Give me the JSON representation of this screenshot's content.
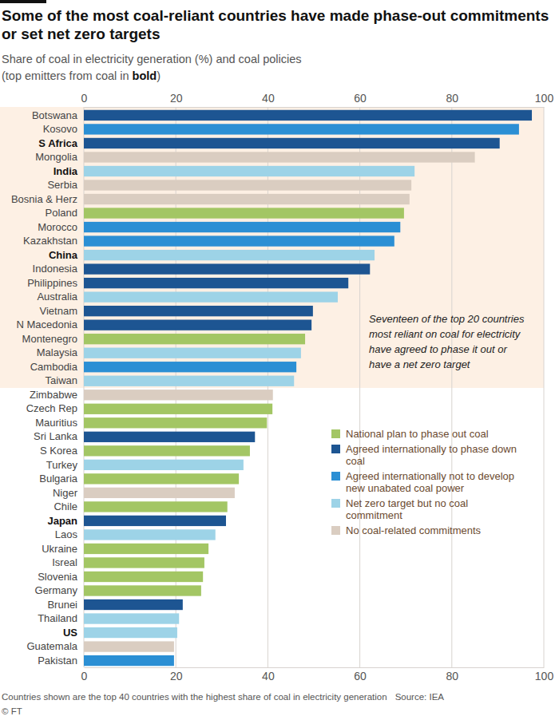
{
  "chart_data": {
    "type": "bar",
    "orientation": "horizontal",
    "title": [
      "Some of the most coal-reliant countries have made phase-out commitments",
      "or set net zero targets"
    ],
    "subtitle": [
      "Share of coal in electricity generation (%) and coal policies",
      "(top emitters from coal in bold)"
    ],
    "annotation": [
      "Seventeen of the top 20 countries",
      "most reliant on coal for electricity",
      "have agreed to phase it out or",
      "have a net zero target"
    ],
    "note": "Countries shown are the top 40 countries with the highest share of coal in electricity generation",
    "source": "Source: IEA",
    "credit": "© FT",
    "categories": [
      "Botswana",
      "Kosovo",
      "S Africa",
      "Mongolia",
      "India",
      "Serbia",
      "Bosnia & Herz",
      "Poland",
      "Morocco",
      "Kazakhstan",
      "China",
      "Indonesia",
      "Philippines",
      "Australia",
      "Vietnam",
      "N Macedonia",
      "Montenegro",
      "Malaysia",
      "Cambodia",
      "Taiwan",
      "Zimbabwe",
      "Czech Rep",
      "Mauritius",
      "Sri Lanka",
      "S Korea",
      "Turkey",
      "Bulgaria",
      "Niger",
      "Chile",
      "Japan",
      "Laos",
      "Ukraine",
      "Isreal",
      "Slovenia",
      "Germany",
      "Brunei",
      "Thailand",
      "US",
      "Guatemala",
      "Pakistan"
    ],
    "series": [
      {
        "name": "National plan to phase out coal",
        "color": "#a3c664",
        "values": [
          null,
          null,
          null,
          null,
          null,
          null,
          null,
          69.6,
          null,
          null,
          null,
          null,
          null,
          null,
          null,
          null,
          48.1,
          null,
          null,
          null,
          null,
          41.0,
          39.8,
          null,
          36.1,
          null,
          33.7,
          null,
          31.2,
          null,
          null,
          27.1,
          26.2,
          25.9,
          25.5,
          null,
          null,
          null,
          null,
          null
        ]
      },
      {
        "name": "Agreed internationally to phase down coal",
        "color": "#1d5592",
        "values": [
          97.4,
          null,
          90.4,
          null,
          null,
          null,
          null,
          null,
          null,
          null,
          null,
          62.2,
          57.5,
          null,
          49.8,
          49.5,
          null,
          null,
          null,
          null,
          null,
          null,
          null,
          37.2,
          null,
          null,
          null,
          null,
          null,
          30.9,
          null,
          null,
          null,
          null,
          null,
          21.5,
          null,
          null,
          null,
          null
        ]
      },
      {
        "name": "Agreed internationally not to develop new unabated coal power",
        "color": "#2b8fd4",
        "values": [
          null,
          94.6,
          null,
          null,
          null,
          null,
          null,
          null,
          68.8,
          67.5,
          null,
          null,
          null,
          null,
          null,
          null,
          null,
          null,
          46.2,
          null,
          null,
          null,
          null,
          null,
          null,
          null,
          null,
          null,
          null,
          null,
          null,
          null,
          null,
          null,
          null,
          null,
          null,
          null,
          null,
          19.6
        ]
      },
      {
        "name": "Net zero target but no coal commitment",
        "color": "#9dd3e7",
        "values": [
          null,
          null,
          null,
          null,
          71.9,
          null,
          null,
          null,
          null,
          null,
          63.2,
          null,
          null,
          55.2,
          null,
          null,
          null,
          47.2,
          null,
          45.7,
          null,
          null,
          null,
          null,
          null,
          34.7,
          null,
          null,
          null,
          null,
          28.6,
          null,
          null,
          null,
          null,
          null,
          20.7,
          20.3,
          null,
          null
        ]
      },
      {
        "name": "No coal-related commitments",
        "color": "#dacdc1",
        "values": [
          null,
          null,
          null,
          85.0,
          null,
          71.2,
          70.8,
          null,
          null,
          null,
          null,
          null,
          null,
          null,
          null,
          null,
          null,
          null,
          null,
          null,
          41.1,
          null,
          null,
          null,
          null,
          null,
          null,
          32.8,
          null,
          null,
          null,
          null,
          null,
          null,
          null,
          null,
          null,
          null,
          19.6,
          null
        ]
      }
    ],
    "xlim": [
      0,
      100
    ],
    "xticks": [
      0,
      20,
      40,
      60,
      80,
      100
    ],
    "grid": true
  }
}
